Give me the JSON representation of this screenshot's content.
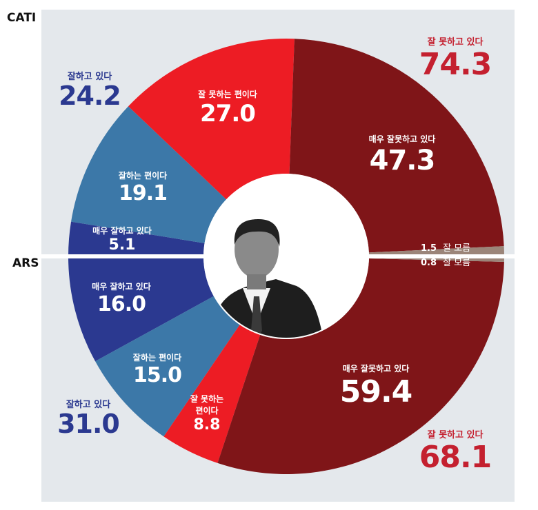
{
  "chart_data": [
    {
      "type": "pie",
      "group": "CATI",
      "layout": "upper half-donut, left to right",
      "categories": [
        "매우 잘하고 있다",
        "잘하는 편이다",
        "잘 못하는 편이다",
        "매우 잘못하고 있다",
        "잘 모름"
      ],
      "values": [
        5.1,
        19.1,
        27.0,
        47.3,
        1.5
      ],
      "colors": [
        "#2b3990",
        "#3c78a8",
        "#ed1c24",
        "#7f1518",
        "#9b8579"
      ],
      "totals": [
        {
          "label": "잘하고 있다",
          "value": "24.2",
          "color": "#2b3990"
        },
        {
          "label": "잘 못하고 있다",
          "value": "74.3",
          "color": "#c4202f"
        }
      ]
    },
    {
      "type": "pie",
      "group": "ARS",
      "layout": "lower half-donut, left to right",
      "categories": [
        "매우 잘하고 있다",
        "잘하는 편이다",
        "잘 못하는 편이다",
        "매우 잘못하고 있다",
        "잘 모름"
      ],
      "values": [
        16.0,
        15.0,
        8.8,
        59.4,
        0.8
      ],
      "colors": [
        "#2b3990",
        "#3c78a8",
        "#ed1c24",
        "#7f1518",
        "#9b8579"
      ],
      "totals": [
        {
          "label": "잘하고 있다",
          "value": "31.0",
          "color": "#2b3990"
        },
        {
          "label": "잘 못하고 있다",
          "value": "68.1",
          "color": "#c4202f"
        }
      ]
    }
  ],
  "labels": {
    "cati": "CATI",
    "ars": "ARS",
    "dontknow": "잘 모름",
    "values_fmt": [
      "5.1",
      "19.1",
      "27.0",
      "47.3",
      "1.5",
      "16.0",
      "15.0",
      "8.8",
      "59.4",
      "0.8"
    ],
    "ars_bad_line1": "잘 못하는",
    "ars_bad_line2": "편이다"
  }
}
